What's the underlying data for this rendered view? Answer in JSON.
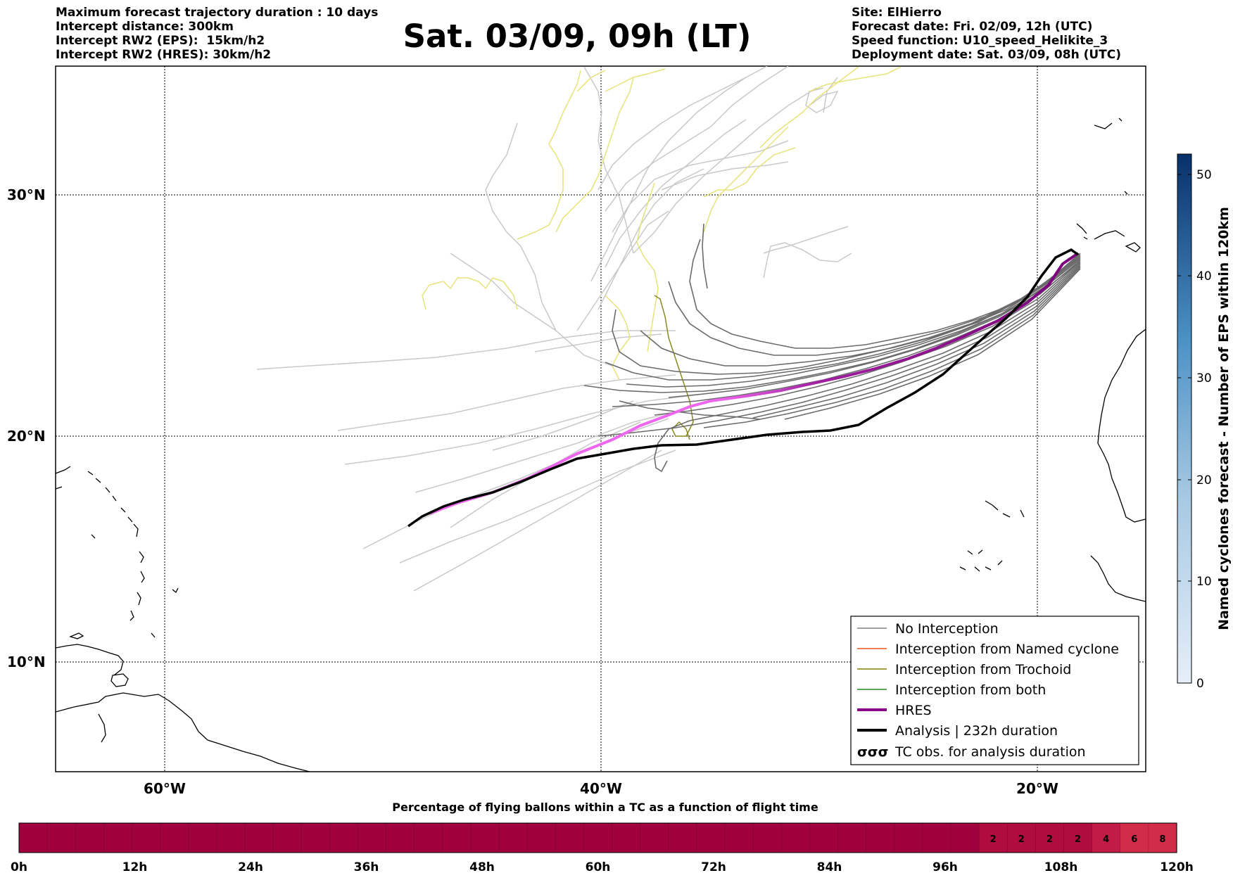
{
  "header": {
    "left_lines": [
      "Maximum forecast trajectory duration : 10 days",
      "Intercept distance: 300km",
      "Intercept RW2 (EPS):  15km/h2",
      "Intercept RW2 (HRES): 30km/h2"
    ],
    "title": "Sat. 03/09, 09h (LT)",
    "right_lines": [
      "Site: ElHierro",
      "Forecast date: Fri. 02/09, 12h (UTC)",
      "Speed function: U10_speed_Helikite_3",
      "Deployment date: Sat. 03/09, 08h (UTC)"
    ]
  },
  "map": {
    "lat_labels": [
      "30°N",
      "20°N",
      "10°N"
    ],
    "lon_labels": [
      "60°W",
      "40°W",
      "20°W"
    ]
  },
  "legend": {
    "items": [
      {
        "label": "No Interception",
        "color": "#808080",
        "style": "thin"
      },
      {
        "label": "Interception from Named cyclone",
        "color": "#e8561e",
        "style": "thin"
      },
      {
        "label": "Interception from Trochoid",
        "color": "#808000",
        "style": "thin"
      },
      {
        "label": "Interception from both",
        "color": "#228b22",
        "style": "thin"
      },
      {
        "label": "HRES",
        "color": "#8b008b",
        "style": "thick"
      },
      {
        "label": "Analysis | 232h duration",
        "color": "#000000",
        "style": "thick"
      },
      {
        "label": "TC obs. for analysis duration",
        "color": "#000000",
        "style": "symbol",
        "symbol": "σσσ"
      }
    ]
  },
  "colorbar_right": {
    "title": "Named cyclones forecast - Number of EPS within 120km",
    "ticks": [
      "0",
      "10",
      "20",
      "30",
      "40",
      "50"
    ],
    "max": 52,
    "color_low": "#e6eef8",
    "color_high": "#08306b"
  },
  "colorbar_bottom": {
    "title": "Percentage of flying ballons within a TC as a function of flight time",
    "tick_labels": [
      "0h",
      "12h",
      "24h",
      "36h",
      "48h",
      "60h",
      "72h",
      "84h",
      "96h",
      "108h",
      "120h"
    ],
    "cell_values": [
      "",
      "",
      "",
      "",
      "",
      "",
      "",
      "",
      "",
      "",
      "",
      "",
      "",
      "",
      "",
      "",
      "",
      "",
      "",
      "",
      "",
      "",
      "",
      "",
      "",
      "",
      "",
      "",
      "",
      "",
      "",
      "",
      "",
      "",
      "2",
      "2",
      "2",
      "2",
      "4",
      "6",
      "8"
    ],
    "base_color": "#a0003e",
    "light_color": "#d12c49"
  },
  "colors": {
    "eps_light": "#c9c9c9",
    "eps_dark": "#6b6b6b",
    "trochoid_yellow": "#e8e27a",
    "trochoid_olive": "#8a8a20",
    "hres_start": "#7a007a",
    "hres_end": "#ee66ee",
    "analysis": "#000000"
  }
}
